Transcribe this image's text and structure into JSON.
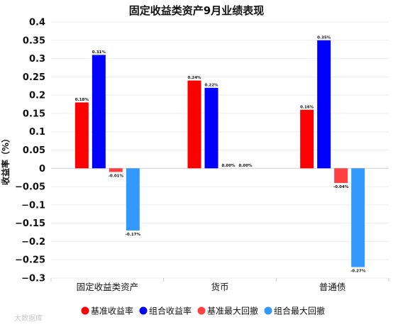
{
  "chart_data": {
    "type": "bar",
    "title": "固定收益类资产9月业绩表现",
    "ylabel": "收益率（%）",
    "xlabel": "",
    "categories": [
      "固定收益类资产",
      "货币",
      "普通债"
    ],
    "series": [
      {
        "name": "基准收益率",
        "color": "#ff0000",
        "values": [
          0.18,
          0.24,
          0.16
        ],
        "labels": [
          "0.18%",
          "0.24%",
          "0.16%"
        ]
      },
      {
        "name": "组合收益率",
        "color": "#0000ff",
        "values": [
          0.31,
          0.22,
          0.35
        ],
        "labels": [
          "0.31%",
          "0.22%",
          "0.35%"
        ]
      },
      {
        "name": "基准最大回撤",
        "color": "#ff4040",
        "values": [
          -0.01,
          0.0,
          -0.04
        ],
        "labels": [
          "-0.01%",
          "0.00%",
          "-0.04%"
        ]
      },
      {
        "name": "组合最大回撤",
        "color": "#3399ff",
        "values": [
          -0.17,
          0.0,
          -0.27
        ],
        "labels": [
          "-0.17%",
          "0.00%",
          "-0.27%"
        ]
      }
    ],
    "ylim": [
      -0.3,
      0.4
    ],
    "yticks": [
      0.4,
      0.35,
      0.3,
      0.25,
      0.2,
      0.15,
      0.1,
      0.05,
      0,
      -0.05,
      -0.1,
      -0.15,
      -0.2,
      -0.25,
      -0.3
    ],
    "ytick_labels": [
      "0.4",
      "0.35",
      "0.3",
      "0.25",
      "0.2",
      "0.15",
      "0.1",
      "0.05",
      "0",
      "−0.05",
      "−0.1",
      "−0.15",
      "−0.2",
      "−0.25",
      "−0.3"
    ],
    "grid": true,
    "legend": "bottom"
  },
  "watermark": "大数据库"
}
